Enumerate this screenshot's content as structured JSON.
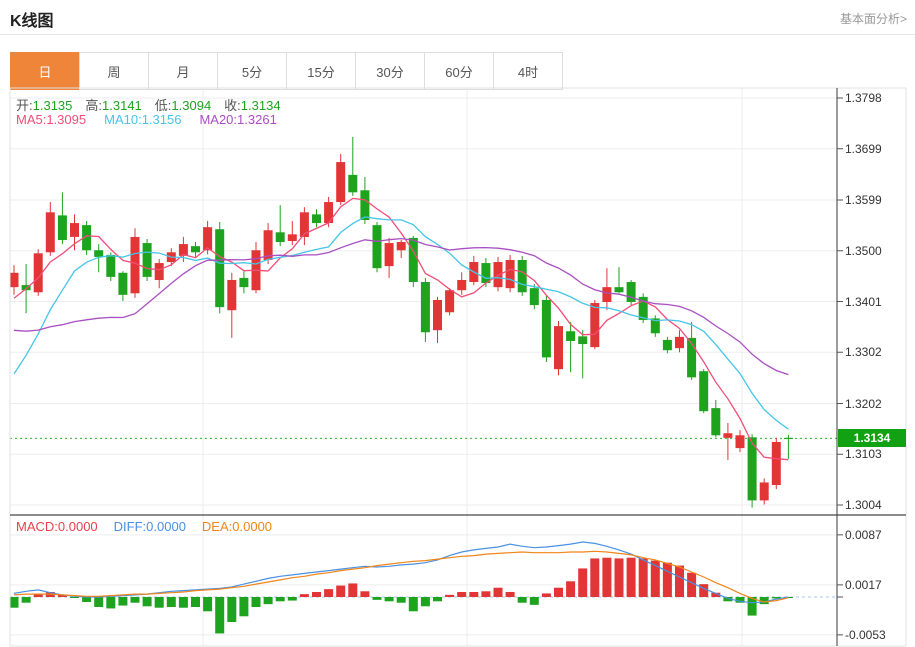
{
  "header": {
    "title": "K线图",
    "link": "基本面分析>"
  },
  "tabs": [
    {
      "label": "日",
      "active": true
    },
    {
      "label": "周",
      "active": false
    },
    {
      "label": "月",
      "active": false
    },
    {
      "label": "5分",
      "active": false
    },
    {
      "label": "15分",
      "active": false
    },
    {
      "label": "30分",
      "active": false
    },
    {
      "label": "60分",
      "active": false
    },
    {
      "label": "4时",
      "active": false
    }
  ],
  "ohlc_legend": {
    "label_color": "#555555",
    "value_color": "#1ea31e",
    "items": [
      {
        "label": "开:",
        "value": "1.3135"
      },
      {
        "label": "高:",
        "value": "1.3141"
      },
      {
        "label": "低:",
        "value": "1.3094"
      },
      {
        "label": "收:",
        "value": "1.3134"
      }
    ]
  },
  "ma_legend": {
    "items": [
      {
        "label": "MA5:",
        "value": "1.3095",
        "color": "#f04e78"
      },
      {
        "label": "MA10:",
        "value": "1.3156",
        "color": "#44c5e8"
      },
      {
        "label": "MA20:",
        "value": "1.3261",
        "color": "#a94fc2"
      }
    ]
  },
  "macd_legend": {
    "items": [
      {
        "label": "MACD:",
        "value": "0.0000",
        "color": "#e8404d"
      },
      {
        "label": "DIFF:",
        "value": "0.0000",
        "color": "#4a90e2"
      },
      {
        "label": "DEA:",
        "value": "0.0000",
        "color": "#f08519"
      }
    ]
  },
  "price_badge": {
    "value": "1.3134"
  },
  "chart_data": {
    "type": "candlestick+macd",
    "colors": {
      "up": "#e23535",
      "down": "#1ea31e",
      "ma5": "#f04e78",
      "ma10": "#44c5e8",
      "ma20": "#a94fc2",
      "diff": "#4a90e2",
      "dea": "#f08519",
      "grid": "#ededed",
      "border": "#e0e0e0",
      "axis": "#3a3a3a",
      "price_line": "#2cb52c",
      "badge": "#12a112",
      "zero_dash": "#a8c8e8"
    },
    "main": {
      "y_ticks": [
        "1.3798",
        "1.3699",
        "1.3599",
        "1.3500",
        "1.3401",
        "1.3302",
        "1.3202",
        "1.3103",
        "1.3004"
      ],
      "current_price": 1.3134,
      "ma_periods": [
        5,
        10,
        20
      ],
      "ma_seed": [
        1.346,
        1.345,
        1.3445,
        1.344,
        1.3435,
        1.343,
        1.3425,
        1.342,
        1.3415,
        1.338,
        1.306,
        1.308,
        1.31,
        1.314,
        1.318,
        1.333,
        1.339,
        1.342,
        1.344
      ],
      "candles": [
        [
          1.3429,
          1.3472,
          1.3414,
          1.3457
        ],
        [
          1.3433,
          1.3474,
          1.3378,
          1.3423
        ],
        [
          1.3419,
          1.3503,
          1.3412,
          1.3495
        ],
        [
          1.3497,
          1.3595,
          1.349,
          1.3575
        ],
        [
          1.3569,
          1.3614,
          1.3513,
          1.3521
        ],
        [
          1.3527,
          1.3571,
          1.3501,
          1.3554
        ],
        [
          1.355,
          1.3558,
          1.3492,
          1.3501
        ],
        [
          1.3501,
          1.3513,
          1.3458,
          1.3488
        ],
        [
          1.3492,
          1.3497,
          1.3441,
          1.3449
        ],
        [
          1.3457,
          1.346,
          1.3402,
          1.3414
        ],
        [
          1.3417,
          1.3544,
          1.3408,
          1.3527
        ],
        [
          1.3515,
          1.3523,
          1.3441,
          1.3449
        ],
        [
          1.3443,
          1.3484,
          1.3427,
          1.3476
        ],
        [
          1.3478,
          1.3505,
          1.347,
          1.3497
        ],
        [
          1.349,
          1.3527,
          1.3478,
          1.3513
        ],
        [
          1.3509,
          1.3517,
          1.3488,
          1.3497
        ],
        [
          1.3501,
          1.3558,
          1.3493,
          1.3546
        ],
        [
          1.3542,
          1.3556,
          1.3378,
          1.339
        ],
        [
          1.3384,
          1.3457,
          1.333,
          1.3443
        ],
        [
          1.3447,
          1.346,
          1.3417,
          1.3429
        ],
        [
          1.3423,
          1.3517,
          1.3417,
          1.3501
        ],
        [
          1.3482,
          1.3554,
          1.3474,
          1.354
        ],
        [
          1.3536,
          1.3589,
          1.3509,
          1.3517
        ],
        [
          1.3519,
          1.3558,
          1.3511,
          1.3532
        ],
        [
          1.3527,
          1.3585,
          1.3511,
          1.3575
        ],
        [
          1.3571,
          1.3581,
          1.3546,
          1.3554
        ],
        [
          1.3554,
          1.3605,
          1.3546,
          1.3595
        ],
        [
          1.3595,
          1.3689,
          1.3589,
          1.3673
        ],
        [
          1.3648,
          1.3722,
          1.3607,
          1.3614
        ],
        [
          1.3618,
          1.3644,
          1.3552,
          1.356
        ],
        [
          1.355,
          1.3556,
          1.3458,
          1.3466
        ],
        [
          1.347,
          1.3525,
          1.3447,
          1.3515
        ],
        [
          1.3501,
          1.3521,
          1.3486,
          1.3517
        ],
        [
          1.3525,
          1.3529,
          1.3429,
          1.3439
        ],
        [
          1.3439,
          1.3447,
          1.3322,
          1.3341
        ],
        [
          1.3345,
          1.341,
          1.332,
          1.3404
        ],
        [
          1.338,
          1.3427,
          1.3374,
          1.3423
        ],
        [
          1.3423,
          1.3458,
          1.3414,
          1.3443
        ],
        [
          1.3439,
          1.349,
          1.3433,
          1.3478
        ],
        [
          1.3476,
          1.3486,
          1.3429,
          1.3437
        ],
        [
          1.3429,
          1.3488,
          1.3421,
          1.3478
        ],
        [
          1.3427,
          1.3492,
          1.3419,
          1.3482
        ],
        [
          1.3482,
          1.349,
          1.3412,
          1.3419
        ],
        [
          1.3427,
          1.3435,
          1.3386,
          1.3394
        ],
        [
          1.3404,
          1.3412,
          1.3283,
          1.3292
        ],
        [
          1.3269,
          1.3363,
          1.3257,
          1.3353
        ],
        [
          1.3343,
          1.3361,
          1.3263,
          1.3324
        ],
        [
          1.3333,
          1.3345,
          1.3251,
          1.3318
        ],
        [
          1.3312,
          1.3404,
          1.3308,
          1.3398
        ],
        [
          1.34,
          1.3466,
          1.3384,
          1.3429
        ],
        [
          1.3429,
          1.3468,
          1.3417,
          1.3419
        ],
        [
          1.3439,
          1.3443,
          1.3394,
          1.34
        ],
        [
          1.341,
          1.3417,
          1.3359,
          1.3365
        ],
        [
          1.3368,
          1.3374,
          1.3332,
          1.3339
        ],
        [
          1.3326,
          1.3332,
          1.33,
          1.3306
        ],
        [
          1.331,
          1.3345,
          1.3302,
          1.3332
        ],
        [
          1.333,
          1.3361,
          1.3248,
          1.3253
        ],
        [
          1.3265,
          1.3269,
          1.3183,
          1.3187
        ],
        [
          1.3193,
          1.3209,
          1.3136,
          1.314
        ],
        [
          1.3135,
          1.3164,
          1.3092,
          1.3144
        ],
        [
          1.3115,
          1.315,
          1.3107,
          1.314
        ],
        [
          1.3136,
          1.3142,
          1.2999,
          1.3013
        ],
        [
          1.3013,
          1.3056,
          1.3005,
          1.3048
        ],
        [
          1.3043,
          1.3135,
          1.3035,
          1.3127
        ],
        [
          1.3135,
          1.3141,
          1.3094,
          1.3134
        ]
      ]
    },
    "macd": {
      "y_ticks": [
        "0.0087",
        "0.0017",
        "-0.0053"
      ],
      "unit": 0.0001,
      "hist": [
        -15,
        -8,
        4,
        7,
        3,
        -1,
        -7,
        -14,
        -16,
        -12,
        -8,
        -13,
        -15,
        -14,
        -15,
        -14,
        -20,
        -51,
        -35,
        -27,
        -14,
        -10,
        -6,
        -5,
        4,
        7,
        11,
        16,
        19,
        8,
        -4,
        -6,
        -8,
        -20,
        -13,
        -6,
        3,
        7,
        7,
        8,
        13,
        7,
        -8,
        -11,
        5,
        13,
        22,
        40,
        54,
        55,
        54,
        55,
        54,
        51,
        48,
        44,
        34,
        18,
        6,
        -6,
        -8,
        -26,
        -10,
        -2,
        0
      ],
      "diff": [
        5,
        8,
        10,
        6,
        3,
        1,
        0,
        0,
        1,
        2,
        3,
        4,
        6,
        8,
        9,
        10,
        11,
        12,
        14,
        18,
        22,
        26,
        29,
        31,
        33,
        35,
        37,
        39,
        41,
        43,
        42,
        43,
        45,
        46,
        48,
        52,
        58,
        63,
        66,
        68,
        70,
        74,
        71,
        69,
        70,
        72,
        74,
        77,
        75,
        71,
        66,
        60,
        52,
        44,
        36,
        28,
        20,
        12,
        5,
        -2,
        -6,
        -8,
        -7,
        -3,
        0
      ],
      "dea": [
        3,
        4,
        4,
        4,
        3,
        2,
        1,
        1,
        2,
        3,
        4,
        4,
        5,
        6,
        7,
        9,
        10,
        11,
        13,
        15,
        18,
        21,
        24,
        27,
        29,
        32,
        34,
        37,
        39,
        41,
        44,
        46,
        48,
        50,
        51,
        53,
        55,
        57,
        58,
        60,
        61,
        62,
        63,
        62,
        62,
        62,
        63,
        63,
        64,
        63,
        61,
        59,
        55,
        52,
        47,
        42,
        35,
        28,
        20,
        13,
        5,
        -2,
        -7,
        -5,
        -1
      ]
    }
  }
}
